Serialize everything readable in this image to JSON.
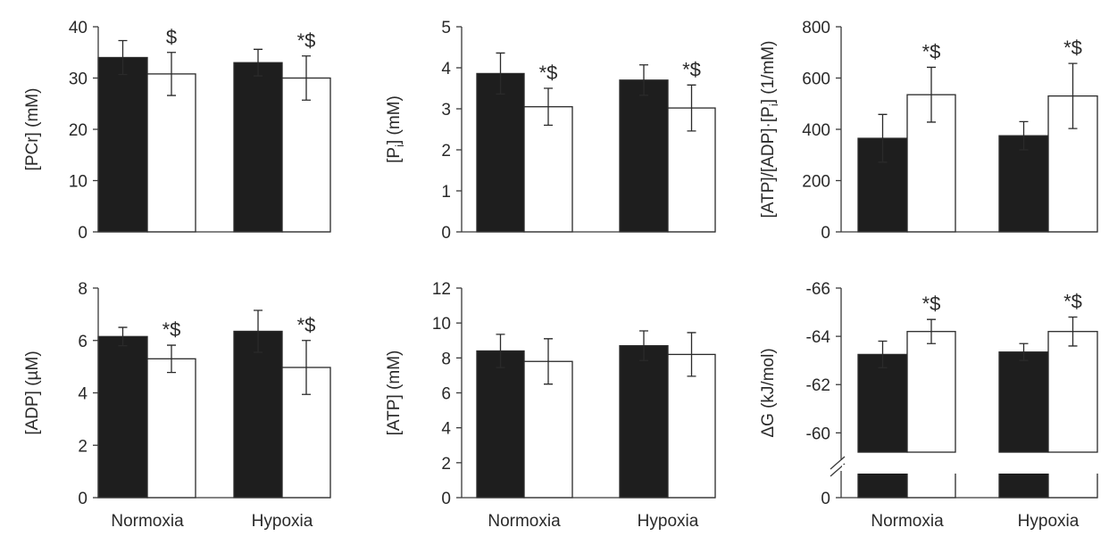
{
  "colors": {
    "black_bar": "#1e1e1e",
    "white_bar": "#ffffff",
    "outline": "#2a2a2a"
  },
  "chart_data": [
    {
      "type": "bar",
      "ylabel": "[PCr] (mM)",
      "categories": [
        "Normoxia",
        "Hypoxia"
      ],
      "ylim": [
        0,
        40
      ],
      "yticks": [
        "0",
        "10",
        "20",
        "30",
        "40"
      ],
      "show_categories": false,
      "series": [
        {
          "color": "black",
          "values": [
            34.0,
            33.0
          ],
          "errors": [
            3.3,
            2.6
          ],
          "annotations": [
            "",
            ""
          ]
        },
        {
          "color": "white",
          "values": [
            30.8,
            30.0
          ],
          "errors": [
            4.2,
            4.3
          ],
          "annotations": [
            "$",
            "*$"
          ]
        }
      ]
    },
    {
      "type": "bar",
      "ylabel": "[P_i] (mM)",
      "categories": [
        "Normoxia",
        "Hypoxia"
      ],
      "ylim": [
        0,
        5
      ],
      "yticks": [
        "0",
        "1",
        "2",
        "3",
        "4",
        "5"
      ],
      "show_categories": false,
      "series": [
        {
          "color": "black",
          "values": [
            3.86,
            3.7
          ],
          "errors": [
            0.5,
            0.37
          ],
          "annotations": [
            "",
            ""
          ]
        },
        {
          "color": "white",
          "values": [
            3.05,
            3.02
          ],
          "errors": [
            0.45,
            0.56
          ],
          "annotations": [
            "*$",
            "*$"
          ]
        }
      ]
    },
    {
      "type": "bar",
      "ylabel": "[ATP]/[ADP]·[P_i] (1/mM)",
      "categories": [
        "Normoxia",
        "Hypoxia"
      ],
      "ylim": [
        0,
        800
      ],
      "yticks": [
        "0",
        "200",
        "400",
        "600",
        "800"
      ],
      "show_categories": false,
      "series": [
        {
          "color": "black",
          "values": [
            365,
            375
          ],
          "errors": [
            93,
            55
          ],
          "annotations": [
            "",
            ""
          ]
        },
        {
          "color": "white",
          "values": [
            535,
            530
          ],
          "errors": [
            107,
            127
          ],
          "annotations": [
            "*$",
            "*$"
          ]
        }
      ]
    },
    {
      "type": "bar",
      "ylabel": "[ADP] (µM)",
      "categories": [
        "Normoxia",
        "Hypoxia"
      ],
      "ylim": [
        0,
        8
      ],
      "yticks": [
        "0",
        "2",
        "4",
        "6",
        "8"
      ],
      "show_categories": true,
      "series": [
        {
          "color": "black",
          "values": [
            6.15,
            6.35
          ],
          "errors": [
            0.35,
            0.8
          ],
          "annotations": [
            "",
            ""
          ]
        },
        {
          "color": "white",
          "values": [
            5.3,
            4.97
          ],
          "errors": [
            0.52,
            1.03
          ],
          "annotations": [
            "*$",
            "*$"
          ]
        }
      ]
    },
    {
      "type": "bar",
      "ylabel": "[ATP] (mM)",
      "categories": [
        "Normoxia",
        "Hypoxia"
      ],
      "ylim": [
        0,
        12
      ],
      "yticks": [
        "0",
        "2",
        "4",
        "6",
        "8",
        "10",
        "12"
      ],
      "show_categories": true,
      "series": [
        {
          "color": "black",
          "values": [
            8.4,
            8.7
          ],
          "errors": [
            0.95,
            0.85
          ],
          "annotations": [
            "",
            ""
          ]
        },
        {
          "color": "white",
          "values": [
            7.8,
            8.2
          ],
          "errors": [
            1.3,
            1.25
          ],
          "annotations": [
            "",
            ""
          ]
        }
      ]
    },
    {
      "type": "bar",
      "ylabel": "ΔG (kJ/mol)",
      "categories": [
        "Normoxia",
        "Hypoxia"
      ],
      "ylim": [
        -59.2,
        -66
      ],
      "axis_break": true,
      "yticks": [
        "-60",
        "-62",
        "-64",
        "-66"
      ],
      "ytick_values": [
        -60,
        -62,
        -64,
        -66
      ],
      "zero_label": "0",
      "show_categories": true,
      "series": [
        {
          "color": "black",
          "values": [
            -63.25,
            -63.35
          ],
          "errors": [
            0.55,
            0.35
          ],
          "annotations": [
            "",
            ""
          ]
        },
        {
          "color": "white",
          "values": [
            -64.2,
            -64.2
          ],
          "errors": [
            0.5,
            0.6
          ],
          "annotations": [
            "*$",
            "*$"
          ]
        }
      ]
    }
  ]
}
